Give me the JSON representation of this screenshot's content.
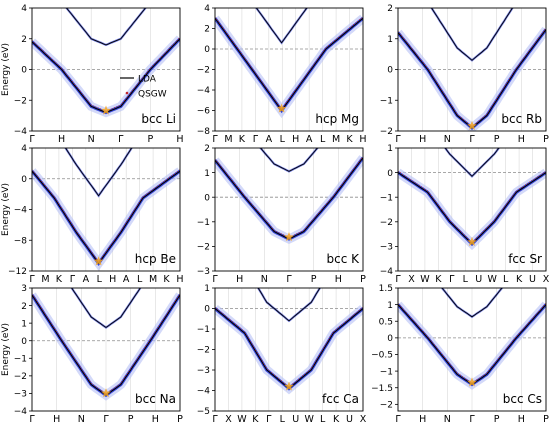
{
  "figure": {
    "ylabel": "Energy (eV)",
    "legend": {
      "lda_label": "LDA",
      "qsgw_label": "QSGW"
    },
    "colors": {
      "lda": "#000000",
      "qsgw": "#c1272d",
      "spectral": "#1d2fd6",
      "spectral_light": "#b6bff5",
      "grid": "#d9d9d9",
      "fermi": "#8c8c8c",
      "star": "#f5a623",
      "cyan": "#5fd3e8"
    }
  },
  "chart_data": [
    {
      "type": "line",
      "panel": "Li",
      "label": "bcc Li",
      "xticks": [
        "Γ",
        "H",
        "N",
        "Γ",
        "P",
        "H"
      ],
      "yticks": [
        "4",
        "2",
        "0",
        "−2",
        "−4"
      ],
      "ylim": [
        -4,
        4
      ],
      "ylabel": "Energy (eV)",
      "legend": true,
      "series": [
        {
          "x": [
            0,
            0.2,
            0.4,
            0.5,
            0.6,
            0.8,
            1.0
          ],
          "y": [
            1.8,
            0.0,
            -2.4,
            -2.8,
            -2.4,
            0.0,
            2.0
          ]
        }
      ]
    },
    {
      "type": "line",
      "panel": "Mg",
      "label": "hcp Mg",
      "xticks": [
        "Γ",
        "M",
        "K",
        "Γ",
        "A",
        "L",
        "H",
        "A",
        "L",
        "M",
        "K",
        "H"
      ],
      "yticks": [
        "4",
        "2",
        "0",
        "−2",
        "−4",
        "−6",
        "−8"
      ],
      "ylim": [
        -8,
        4
      ],
      "series": [
        {
          "x": [
            0,
            0.15,
            0.3,
            0.45,
            0.6,
            0.75,
            1.0
          ],
          "y": [
            3.0,
            0.0,
            -3.0,
            -6.0,
            -3.0,
            0.0,
            3.0
          ]
        }
      ]
    },
    {
      "type": "line",
      "panel": "Rb",
      "label": "bcc Rb",
      "xticks": [
        "Γ",
        "H",
        "N",
        "Γ",
        "P",
        "H",
        "P"
      ],
      "yticks": [
        "2",
        "1",
        "0",
        "−1",
        "−2"
      ],
      "ylim": [
        -2,
        2
      ],
      "series": [
        {
          "x": [
            0,
            0.2,
            0.4,
            0.5,
            0.6,
            0.8,
            1.0
          ],
          "y": [
            1.2,
            0.0,
            -1.5,
            -1.9,
            -1.5,
            0.0,
            1.3
          ]
        }
      ]
    },
    {
      "type": "line",
      "panel": "Be",
      "label": "hcp Be",
      "xticks": [
        "Γ",
        "M",
        "K",
        "Γ",
        "A",
        "L",
        "H",
        "A",
        "L",
        "M",
        "K",
        "H"
      ],
      "yticks": [
        "4",
        "0",
        "−4",
        "−8",
        "−12"
      ],
      "ylim": [
        -12,
        4
      ],
      "series": [
        {
          "x": [
            0,
            0.15,
            0.3,
            0.45,
            0.6,
            0.75,
            1.0
          ],
          "y": [
            1.0,
            -2.5,
            -7.0,
            -11.0,
            -7.0,
            -2.5,
            1.0
          ]
        }
      ]
    },
    {
      "type": "line",
      "panel": "K",
      "label": "bcc K",
      "xticks": [
        "Γ",
        "H",
        "N",
        "Γ",
        "P",
        "H",
        "P"
      ],
      "yticks": [
        "2",
        "1",
        "0",
        "−1",
        "−2",
        "−3"
      ],
      "ylim": [
        -3,
        2
      ],
      "series": [
        {
          "x": [
            0,
            0.2,
            0.4,
            0.5,
            0.6,
            0.8,
            1.0
          ],
          "y": [
            1.5,
            0.0,
            -1.4,
            -1.7,
            -1.4,
            0.0,
            1.6
          ]
        }
      ]
    },
    {
      "type": "line",
      "panel": "Sr",
      "label": "fcc Sr",
      "xticks": [
        "Γ",
        "X",
        "W",
        "K",
        "Γ",
        "L",
        "U",
        "W",
        "L",
        "K",
        "U",
        "X"
      ],
      "yticks": [
        "1",
        "0",
        "−1",
        "−2",
        "−3",
        "−4"
      ],
      "ylim": [
        -4,
        1
      ],
      "series": [
        {
          "x": [
            0,
            0.2,
            0.35,
            0.5,
            0.65,
            0.8,
            1.0
          ],
          "y": [
            0.0,
            -0.8,
            -2.0,
            -2.9,
            -2.0,
            -0.8,
            0.0
          ]
        }
      ]
    },
    {
      "type": "line",
      "panel": "Na",
      "label": "bcc Na",
      "xticks": [
        "Γ",
        "H",
        "N",
        "Γ",
        "P",
        "H",
        "P"
      ],
      "yticks": [
        "3",
        "2",
        "1",
        "0",
        "−1",
        "−2",
        "−3",
        "−4"
      ],
      "ylim": [
        -4,
        3
      ],
      "series": [
        {
          "x": [
            0,
            0.2,
            0.4,
            0.5,
            0.6,
            0.8,
            1.0
          ],
          "y": [
            2.6,
            0.0,
            -2.5,
            -3.1,
            -2.5,
            0.0,
            2.6
          ]
        }
      ]
    },
    {
      "type": "line",
      "panel": "Ca",
      "label": "fcc Ca",
      "xticks": [
        "Γ",
        "X",
        "W",
        "K",
        "Γ",
        "L",
        "U",
        "W",
        "L",
        "K",
        "U",
        "X"
      ],
      "yticks": [
        "1",
        "0",
        "−1",
        "−2",
        "−3",
        "−4",
        "−5"
      ],
      "ylim": [
        -5,
        1
      ],
      "series": [
        {
          "x": [
            0,
            0.2,
            0.35,
            0.5,
            0.65,
            0.8,
            1.0
          ],
          "y": [
            0.0,
            -1.2,
            -3.0,
            -3.9,
            -3.0,
            -1.2,
            0.0
          ]
        }
      ]
    },
    {
      "type": "line",
      "panel": "Cs",
      "label": "bcc Cs",
      "xticks": [
        "Γ",
        "H",
        "N",
        "Γ",
        "P",
        "H",
        "P"
      ],
      "yticks": [
        "1.5",
        "1",
        "0.5",
        "0",
        "−0.5",
        "−1",
        "−1.5",
        "−2"
      ],
      "ylim": [
        -2.2,
        1.5
      ],
      "series": [
        {
          "x": [
            0,
            0.2,
            0.4,
            0.5,
            0.6,
            0.8,
            1.0
          ],
          "y": [
            1.0,
            0.0,
            -1.1,
            -1.4,
            -1.1,
            0.0,
            1.0
          ]
        }
      ]
    }
  ]
}
